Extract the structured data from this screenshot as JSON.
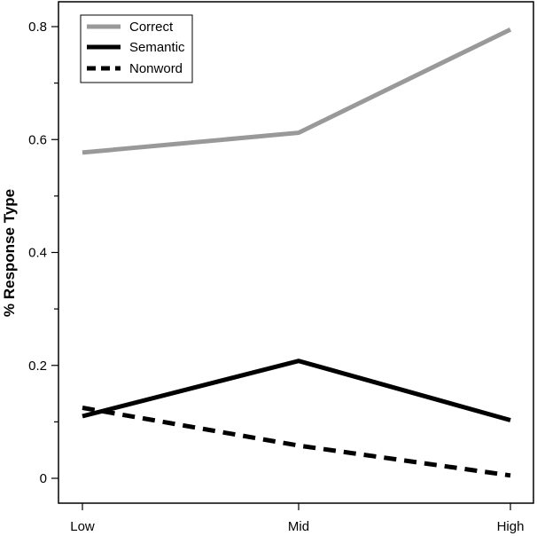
{
  "chart_data": {
    "type": "line",
    "title": "",
    "xlabel": "",
    "ylabel": "% Response Type",
    "categories": [
      "Low",
      "Mid",
      "High"
    ],
    "ylim": [
      0,
      0.8
    ],
    "yticks": [
      0,
      0.2,
      0.4,
      0.6,
      0.8
    ],
    "ytick_labels": [
      "0",
      "0.2",
      "0.4",
      "0.6",
      "0.8"
    ],
    "grid": false,
    "legend_position": "top-left",
    "series": [
      {
        "name": "Correct",
        "values": [
          0.577,
          0.612,
          0.795
        ],
        "color": "#999999",
        "style": "solid"
      },
      {
        "name": "Semantic",
        "values": [
          0.11,
          0.208,
          0.103
        ],
        "color": "#000000",
        "style": "solid"
      },
      {
        "name": "Nonword",
        "values": [
          0.125,
          0.058,
          0.005
        ],
        "color": "#000000",
        "style": "dashed"
      }
    ]
  }
}
